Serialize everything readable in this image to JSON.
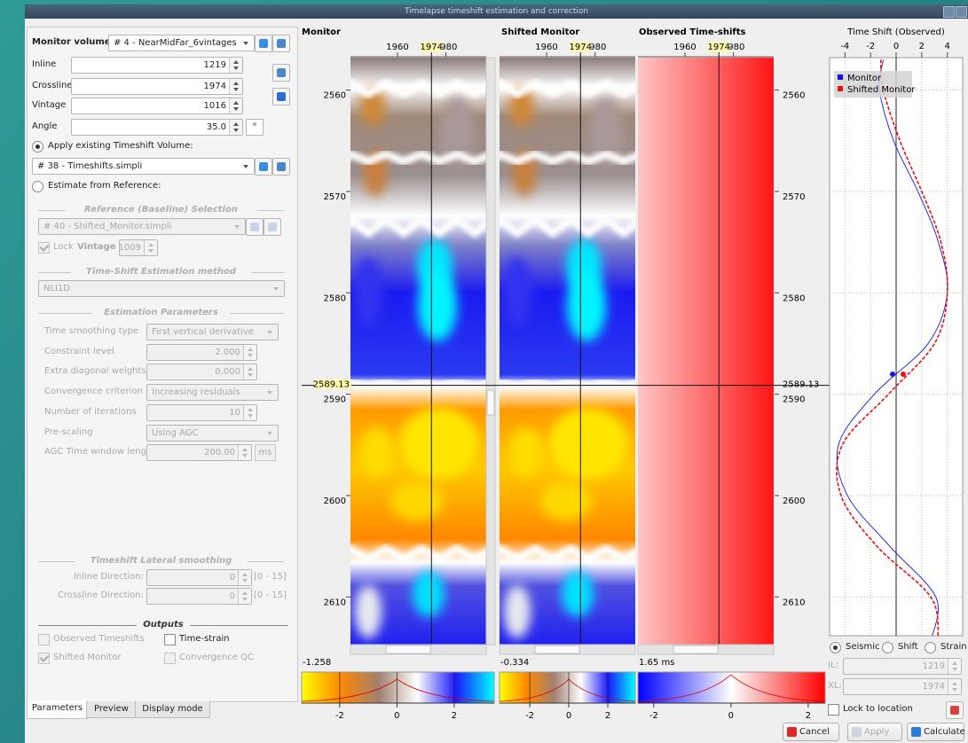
{
  "window_title": "Timelapse timeshift estimation and correction",
  "parameters": {
    "monitor_volume": {
      "label": "Monitor volume:",
      "value": "# 4 - NearMidFar_6vintages"
    },
    "inline": {
      "label": "Inline",
      "value": 1219
    },
    "crossline": {
      "label": "Crossline",
      "value": 1974
    },
    "vintage": {
      "label": "Vintage",
      "value": 1016
    },
    "angle": {
      "label": "Angle",
      "value": "35.0",
      "unit": "°"
    },
    "apply_existing": "Apply existing Timeshift Volume:",
    "timeshift_volume": "# 38 - Timeshifts.simpli",
    "estimate_from_reference": "Estimate from Reference:",
    "reference_group": {
      "title": "Reference (Baseline) Selection",
      "volume": "# 40 - Shifted_Monitor.simpli",
      "lock": "Lock",
      "vintage_label": "Vintage",
      "vintage": 1009
    },
    "method_group": {
      "title": "Time-Shift Estimation method",
      "method": "NLI1D"
    },
    "estimation_group": {
      "title": "Estimation Parameters",
      "rows": [
        {
          "label": "Time smoothing type",
          "value": "First vertical derivative"
        },
        {
          "label": "Constraint level",
          "value": "2.000"
        },
        {
          "label": "Extra diagonal weights",
          "value": "0.000"
        },
        {
          "label": "Convergence criterion",
          "value": "Increasing residuals"
        },
        {
          "label": "Number of iterations",
          "value": 10
        },
        {
          "label": "Pre-scaling",
          "value": "Using AGC"
        },
        {
          "label": "AGC Time window length",
          "value": "200.00",
          "unit": "ms"
        }
      ]
    },
    "lateral_group": {
      "title": "Timeshift Lateral smoothing",
      "rows": [
        {
          "label": "Inline Direction:",
          "value": 0,
          "range": "[0 - 15]"
        },
        {
          "label": "Crossline Direction:",
          "value": 0,
          "range": "[0 - 15]"
        }
      ]
    },
    "outputs": {
      "title": "Outputs",
      "items": [
        "Observed Timeshifts",
        "Time-strain",
        "Shifted Monitor",
        "Convergence QC"
      ]
    }
  },
  "tabs": [
    "Parameters",
    "Preview",
    "Display mode"
  ],
  "sections": {
    "panels": [
      "Monitor",
      "Shifted Monitor",
      "Observed Time-shifts"
    ],
    "crossline_axis": {
      "xlim": [
        1940.6,
        1996.6
      ],
      "xticks": [
        1960,
        1980
      ],
      "cursor": 1974
    },
    "time_axis": {
      "ylim": [
        2556.8,
        2614.7
      ],
      "yticks": [
        2560,
        2570,
        2580,
        2590,
        2600,
        2610
      ],
      "cursor": 2589.13
    },
    "colorbars": [
      {
        "label": -1.258,
        "clim": [
          -3.33,
          3.4
        ],
        "ticks": [
          -2,
          0,
          2
        ],
        "colors": [
          "#ffff00",
          "#ff8800",
          "#a08070",
          "#ffffff",
          "#1a1aff",
          "#00ffff"
        ]
      },
      {
        "label": -0.334,
        "clim": [
          -3.55,
          3.41
        ],
        "ticks": [
          -2,
          0,
          2
        ],
        "colors": [
          "#ffff00",
          "#ff8800",
          "#a08070",
          "#ffffff",
          "#1a1aff",
          "#00ffff"
        ]
      },
      {
        "label": "1.65 ms",
        "clim": [
          -2.41,
          2.44
        ],
        "ticks": [
          -2,
          0,
          2
        ],
        "colors": [
          "#0000ff",
          "#ffffff",
          "#ff0000"
        ]
      }
    ]
  },
  "trace_plot": {
    "title": "Time Shift (Observed)",
    "xlim": [
      -5.2,
      5.2
    ],
    "xticks": [
      -4,
      -2,
      0,
      2,
      4
    ],
    "grid": true,
    "times": [
      2557,
      2560,
      2565,
      2570,
      2575,
      2580,
      2585,
      2590,
      2595,
      2600,
      2605,
      2610,
      2614
    ],
    "series": [
      {
        "name": "Monitor",
        "color": "#1515e0",
        "values": [
          -1.0,
          -1.3,
          -0.2,
          1.7,
          3.3,
          4.0,
          2.5,
          -1.7,
          -4.5,
          -3.8,
          -0.5,
          3.1,
          2.8
        ]
      },
      {
        "name": "Shifted Monitor",
        "color": "#e81010",
        "values": [
          -1.2,
          -1.0,
          0.3,
          2.0,
          3.5,
          4.0,
          3.0,
          -0.6,
          -4.2,
          -4.3,
          -1.5,
          2.7,
          3.3
        ]
      }
    ]
  },
  "trace_controls": {
    "modes": [
      "Seismic",
      "Shift",
      "Strain"
    ],
    "il_label": "IL:",
    "il": 1219,
    "xl_label": "XL:",
    "xl": 1974,
    "lock": "Lock to location"
  },
  "buttons": [
    "Cancel",
    "Apply",
    "Calculate"
  ]
}
